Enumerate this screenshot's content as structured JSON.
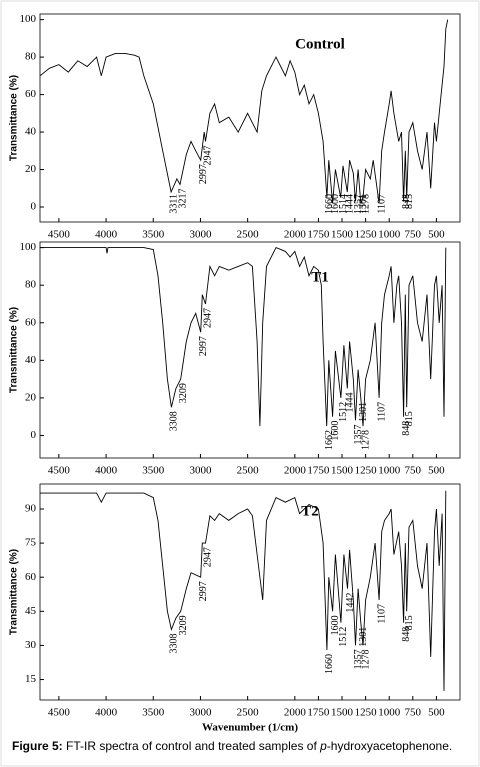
{
  "chart_data": [
    {
      "type": "line",
      "title": "Control",
      "ylabel": "Transmittance (%)",
      "color": "#000000",
      "xlim": [
        4700,
        250
      ],
      "xticks": [
        4500,
        4000,
        3500,
        3000,
        2500,
        2000,
        1750,
        1500,
        1250,
        1000,
        750,
        500
      ],
      "ylim": [
        -8,
        103
      ],
      "yticks": [
        0,
        20,
        40,
        60,
        80,
        100
      ],
      "grid": false,
      "x": [
        4700,
        4600,
        4500,
        4400,
        4300,
        4200,
        4100,
        4050,
        4000,
        3900,
        3800,
        3700,
        3650,
        3600,
        3500,
        3400,
        3311,
        3250,
        3217,
        3150,
        3100,
        3050,
        2997,
        2960,
        2947,
        2900,
        2850,
        2800,
        2700,
        2600,
        2500,
        2400,
        2350,
        2300,
        2200,
        2150,
        2100,
        2050,
        2000,
        1950,
        1900,
        1850,
        1800,
        1750,
        1700,
        1660,
        1640,
        1600,
        1570,
        1514,
        1490,
        1444,
        1420,
        1380,
        1357,
        1330,
        1301,
        1278,
        1250,
        1200,
        1170,
        1107,
        1080,
        1050,
        1000,
        980,
        950,
        900,
        870,
        848,
        830,
        815,
        790,
        750,
        700,
        650,
        600,
        560,
        520,
        500,
        450,
        420,
        400,
        380
      ],
      "values": [
        70,
        74,
        76,
        72,
        78,
        75,
        80,
        70,
        80,
        82,
        82,
        81,
        80,
        70,
        55,
        30,
        8,
        15,
        12,
        28,
        35,
        30,
        25,
        40,
        35,
        50,
        55,
        45,
        48,
        40,
        50,
        40,
        62,
        70,
        80,
        75,
        70,
        78,
        72,
        60,
        65,
        55,
        60,
        50,
        35,
        5,
        25,
        2,
        20,
        5,
        22,
        8,
        25,
        18,
        3,
        20,
        2,
        5,
        20,
        15,
        25,
        2,
        30,
        40,
        55,
        62,
        50,
        35,
        40,
        3,
        30,
        5,
        40,
        45,
        30,
        20,
        40,
        10,
        45,
        35,
        60,
        75,
        95,
        100
      ],
      "peaks": [
        3311,
        3217,
        2997,
        2947,
        1660,
        1600,
        1514,
        1444,
        1357,
        1301,
        1278,
        1107,
        848,
        815
      ]
    },
    {
      "type": "line",
      "title": "T1",
      "ylabel": "Transmittance (%)",
      "color": "#000000",
      "xlim": [
        4700,
        250
      ],
      "xticks": [
        4500,
        4000,
        3500,
        3000,
        2500,
        2000,
        1750,
        1500,
        1250,
        1000,
        750,
        500
      ],
      "ylim": [
        -12,
        103
      ],
      "yticks": [
        0,
        20,
        40,
        60,
        80,
        100
      ],
      "grid": false,
      "x": [
        4700,
        4000,
        3990,
        3980,
        3600,
        3500,
        3450,
        3400,
        3350,
        3308,
        3260,
        3209,
        3150,
        3100,
        3050,
        2997,
        2980,
        2947,
        2900,
        2850,
        2800,
        2700,
        2600,
        2500,
        2450,
        2400,
        2370,
        2340,
        2300,
        2200,
        2100,
        2050,
        2000,
        1950,
        1900,
        1850,
        1800,
        1750,
        1720,
        1700,
        1662,
        1640,
        1600,
        1570,
        1512,
        1480,
        1444,
        1420,
        1380,
        1357,
        1330,
        1301,
        1278,
        1250,
        1200,
        1150,
        1107,
        1080,
        1050,
        1000,
        980,
        950,
        920,
        900,
        870,
        848,
        830,
        815,
        790,
        750,
        700,
        650,
        600,
        560,
        520,
        500,
        470,
        440,
        420,
        400
      ],
      "values": [
        100,
        100,
        97,
        100,
        100,
        99,
        85,
        60,
        30,
        15,
        25,
        30,
        50,
        60,
        65,
        55,
        75,
        70,
        90,
        85,
        90,
        88,
        90,
        92,
        90,
        50,
        5,
        60,
        90,
        100,
        98,
        95,
        98,
        90,
        95,
        85,
        90,
        88,
        80,
        50,
        5,
        40,
        10,
        45,
        20,
        48,
        25,
        50,
        30,
        8,
        35,
        20,
        5,
        30,
        40,
        60,
        20,
        60,
        75,
        85,
        90,
        60,
        80,
        85,
        60,
        10,
        75,
        15,
        80,
        85,
        60,
        50,
        75,
        30,
        80,
        85,
        60,
        80,
        10,
        100
      ],
      "peaks": [
        3308,
        3209,
        2997,
        2947,
        1662,
        1600,
        1512,
        1444,
        1357,
        1301,
        1278,
        1107,
        848,
        815
      ]
    },
    {
      "type": "line",
      "title": "T2",
      "ylabel": "Transmittance (%)",
      "xlabel": "Wavenumber (1/cm)",
      "color": "#000000",
      "xlim": [
        4700,
        250
      ],
      "xticks": [
        4500,
        4000,
        3500,
        3000,
        2500,
        2000,
        1750,
        1500,
        1250,
        1000,
        750,
        500
      ],
      "ylim": [
        6,
        101
      ],
      "yticks": [
        15,
        30,
        45,
        60,
        75,
        90
      ],
      "grid": false,
      "x": [
        4700,
        4100,
        4050,
        4000,
        3600,
        3500,
        3450,
        3400,
        3350,
        3308,
        3260,
        3209,
        3150,
        3100,
        2997,
        2980,
        2947,
        2900,
        2850,
        2800,
        2700,
        2600,
        2500,
        2450,
        2400,
        2340,
        2300,
        2200,
        2100,
        2000,
        1950,
        1850,
        1750,
        1700,
        1660,
        1640,
        1600,
        1570,
        1512,
        1480,
        1442,
        1420,
        1380,
        1357,
        1330,
        1301,
        1278,
        1250,
        1200,
        1150,
        1107,
        1080,
        1050,
        1000,
        980,
        950,
        900,
        870,
        848,
        830,
        815,
        790,
        750,
        700,
        650,
        600,
        560,
        520,
        500,
        470,
        440,
        420,
        400
      ],
      "values": [
        97,
        97,
        93,
        97,
        97,
        95,
        85,
        65,
        45,
        37,
        42,
        45,
        55,
        62,
        60,
        75,
        75,
        87,
        85,
        88,
        85,
        88,
        90,
        87,
        70,
        50,
        85,
        95,
        93,
        95,
        88,
        92,
        90,
        75,
        28,
        60,
        45,
        70,
        40,
        70,
        55,
        72,
        50,
        30,
        55,
        40,
        30,
        50,
        60,
        75,
        50,
        80,
        85,
        88,
        90,
        70,
        80,
        65,
        40,
        75,
        45,
        82,
        85,
        65,
        55,
        75,
        25,
        80,
        90,
        65,
        88,
        10,
        98
      ],
      "peaks": [
        3308,
        3209,
        2997,
        2947,
        1660,
        1600,
        1512,
        1442,
        1357,
        1301,
        1278,
        1107,
        848,
        815
      ]
    }
  ],
  "caption": {
    "label": "Figure 5:",
    "text": " FT-IR spectra of control and treated samples of ",
    "italic": "p",
    "end": "-hydroxyacetophenone."
  }
}
